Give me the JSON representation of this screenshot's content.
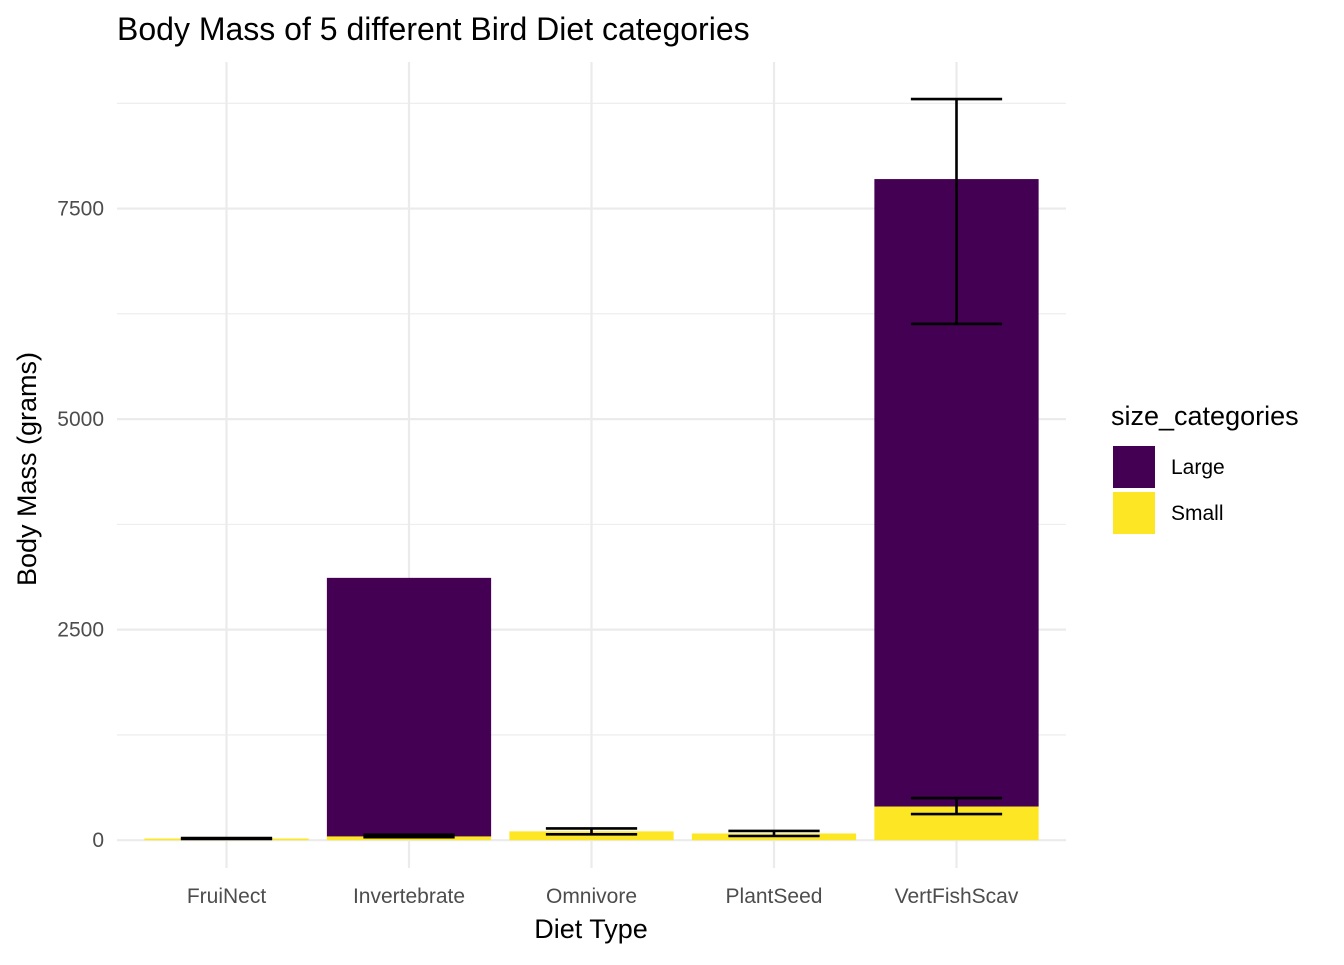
{
  "chart_data": {
    "type": "bar",
    "stacked": true,
    "title": "Body Mass of 5 different Bird Diet categories",
    "xlabel": "Diet Type",
    "ylabel": "Body Mass (grams)",
    "categories": [
      "FruiNect",
      "Invertebrate",
      "Omnivore",
      "PlantSeed",
      "VertFishScav"
    ],
    "y_ticks": [
      0,
      2500,
      5000,
      7500
    ],
    "y_tick_labels": [
      "0",
      "2500",
      "5000",
      "7500"
    ],
    "ylim": [
      -330,
      9240
    ],
    "grid": true,
    "legend": {
      "title": "size_categories",
      "position": "right",
      "entries": [
        {
          "label": "Large",
          "color": "#440154"
        },
        {
          "label": "Small",
          "color": "#FDE725"
        }
      ]
    },
    "series": [
      {
        "name": "Large",
        "color": "#440154",
        "values": [
          0,
          3070,
          0,
          0,
          7450
        ]
      },
      {
        "name": "Small",
        "color": "#FDE725",
        "values": [
          20,
          45,
          105,
          80,
          400
        ]
      }
    ],
    "error_bars": [
      {
        "category": "FruiNect",
        "series": "Small",
        "low": 15,
        "high": 25
      },
      {
        "category": "Invertebrate",
        "series": "Small",
        "low": 35,
        "high": 65
      },
      {
        "category": "Omnivore",
        "series": "Small",
        "low": 70,
        "high": 140
      },
      {
        "category": "PlantSeed",
        "series": "Small",
        "low": 50,
        "high": 110
      },
      {
        "category": "VertFishScav",
        "series": "Small",
        "low": 310,
        "high": 500
      },
      {
        "category": "VertFishScav",
        "series": "Large",
        "low": 6130,
        "high": 8800
      }
    ]
  }
}
